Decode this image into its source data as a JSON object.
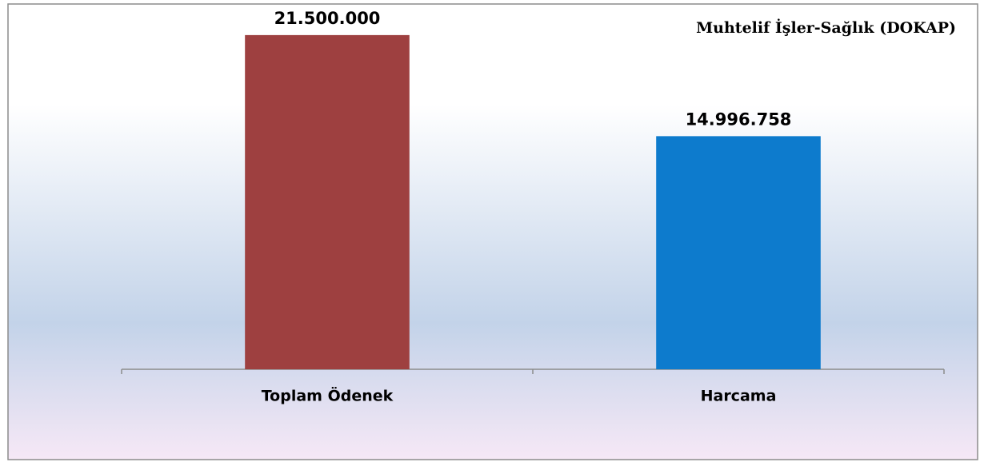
{
  "chart_data": {
    "type": "bar",
    "title": "Muhtelif İşler-Sağlık (DOKAP)",
    "categories": [
      "Toplam Ödenek",
      "Harcama"
    ],
    "series": [
      {
        "name": null,
        "colors": [
          "#9e4040",
          "#0d7bcd"
        ],
        "values": [
          21500000,
          14996758
        ],
        "value_labels": [
          "21.500.000",
          "14.996.758"
        ]
      }
    ],
    "ylim": [
      0,
      23500000
    ]
  }
}
